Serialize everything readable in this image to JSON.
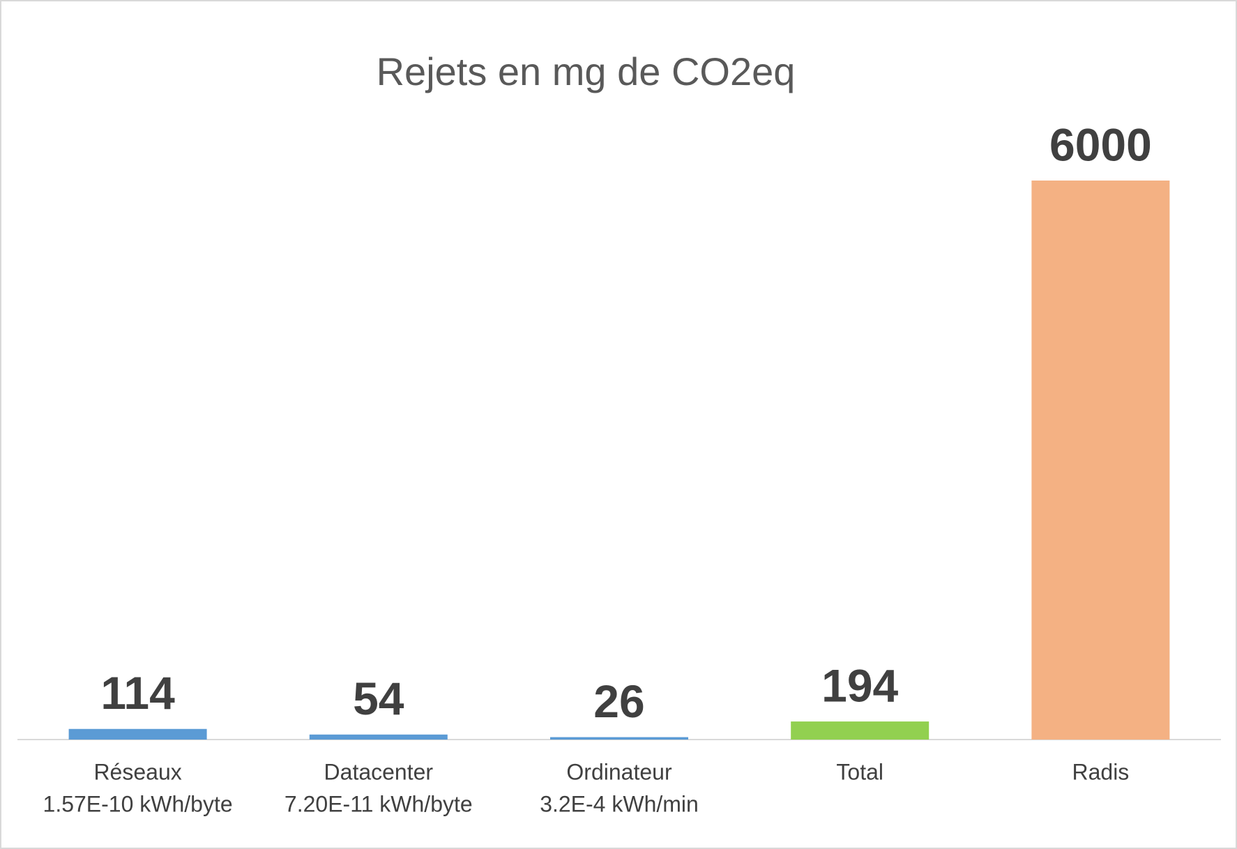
{
  "chart_data": {
    "type": "bar",
    "title": "Rejets en mg de CO2eq",
    "categories": [
      [
        "Réseaux",
        "1.57E-10 kWh/byte"
      ],
      [
        "Datacenter",
        "7.20E-11 kWh/byte"
      ],
      [
        "Ordinateur",
        "3.2E-4 kWh/min"
      ],
      [
        "Total"
      ],
      [
        "Radis"
      ]
    ],
    "values": [
      114,
      54,
      26,
      194,
      6000
    ],
    "colors": [
      "#5b9bd5",
      "#5b9bd5",
      "#5b9bd5",
      "#92d050",
      "#f4b183"
    ]
  }
}
